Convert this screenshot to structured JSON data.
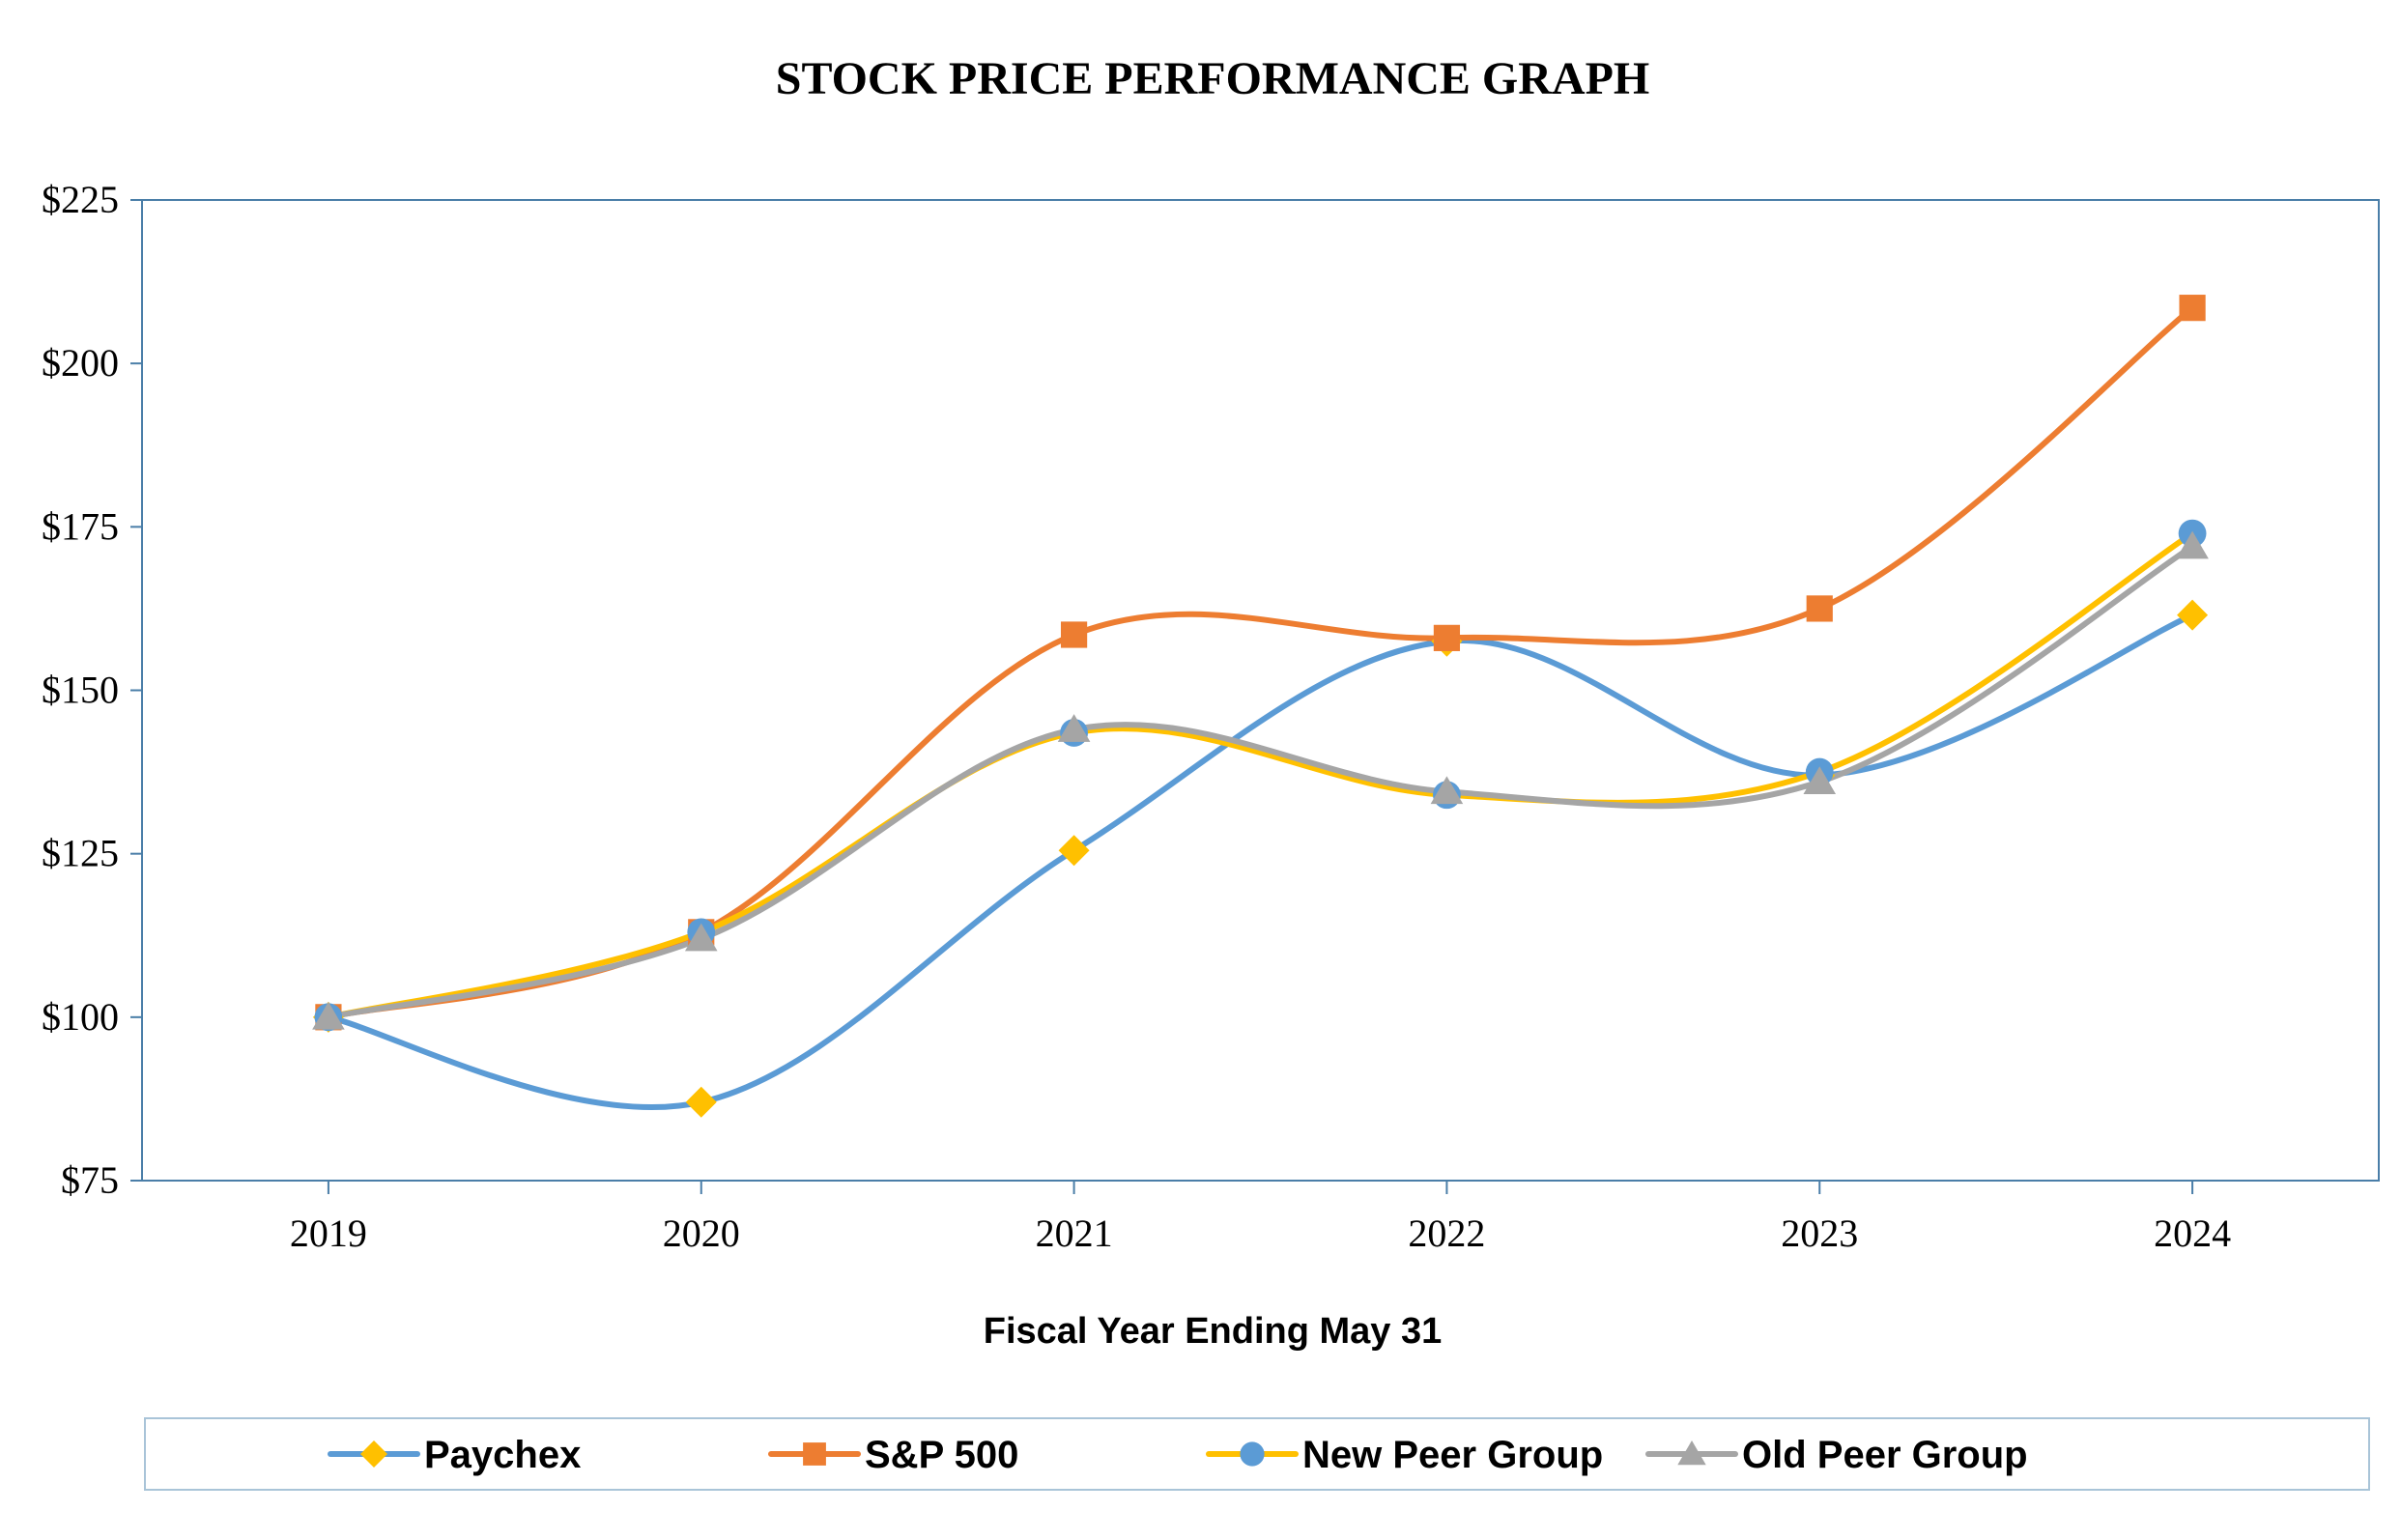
{
  "chart_data": {
    "type": "line",
    "title": "STOCK PRICE PERFORMANCE GRAPH",
    "xlabel": "Fiscal Year Ending May 31",
    "ylabel": "",
    "categories": [
      "2019",
      "2020",
      "2021",
      "2022",
      "2023",
      "2024"
    ],
    "ylim": [
      75,
      225
    ],
    "yticks": [
      75,
      100,
      125,
      150,
      175,
      200,
      225
    ],
    "ytick_labels": [
      "$75",
      "$100",
      "$125",
      "$150",
      "$175",
      "$200",
      "$225"
    ],
    "grid": false,
    "legend_position": "bottom",
    "series": [
      {
        "name": "Paychex",
        "color": "#5b9bd5",
        "marker": "diamond",
        "marker_color": "#ffc000",
        "values": [
          100,
          87,
          125.5,
          157.5,
          137,
          161.5
        ]
      },
      {
        "name": "S&P 500",
        "color": "#ed7d31",
        "marker": "square",
        "marker_color": "#ed7d31",
        "values": [
          100,
          113,
          158.5,
          158,
          162.5,
          208.5
        ]
      },
      {
        "name": "New Peer Group",
        "color": "#ffc000",
        "marker": "circle",
        "marker_color": "#5b9bd5",
        "values": [
          100,
          113,
          143.5,
          134,
          137.5,
          174
        ]
      },
      {
        "name": "Old Peer Group",
        "color": "#a5a5a5",
        "marker": "triangle",
        "marker_color": "#a5a5a5",
        "values": [
          100,
          112,
          144,
          134.5,
          136,
          172
        ]
      }
    ]
  }
}
